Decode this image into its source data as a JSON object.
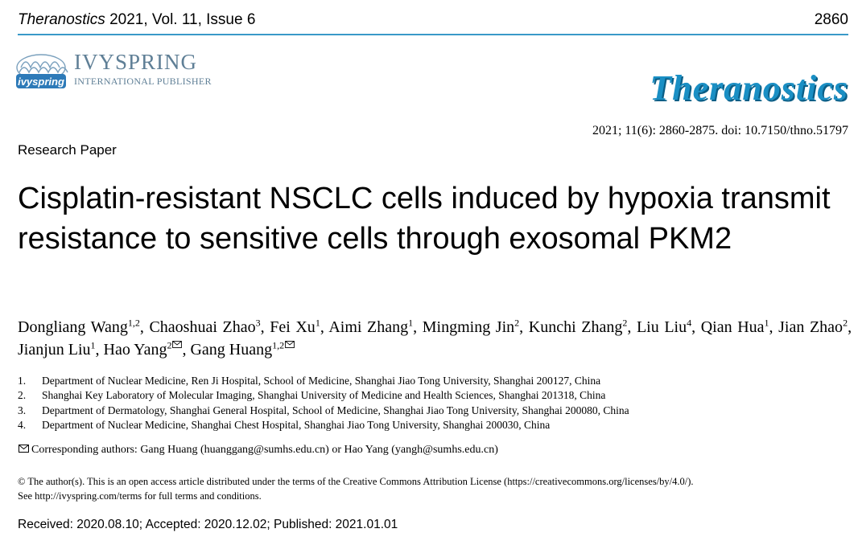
{
  "header": {
    "journal_name": "Theranostics",
    "volume_info": "2021, Vol. 11, Issue 6",
    "page_number": "2860"
  },
  "publisher": {
    "name": "IVYSPRING",
    "subtitle": "INTERNATIONAL PUBLISHER",
    "logo_text": "ivyspring"
  },
  "brand": {
    "name": "Theranostics",
    "color": "#1a8fc4"
  },
  "citation": "2021; 11(6): 2860-2875. doi: 10.7150/thno.51797",
  "article_type": "Research Paper",
  "title": "Cisplatin-resistant NSCLC cells induced by hypoxia transmit resistance to sensitive cells through exosomal PKM2",
  "authors": [
    {
      "name": "Dongliang Wang",
      "aff": "1,2",
      "corr": false
    },
    {
      "name": "Chaoshuai Zhao",
      "aff": "3",
      "corr": false
    },
    {
      "name": "Fei Xu",
      "aff": "1",
      "corr": false
    },
    {
      "name": "Aimi Zhang",
      "aff": "1",
      "corr": false
    },
    {
      "name": "Mingming Jin",
      "aff": "2",
      "corr": false
    },
    {
      "name": "Kunchi Zhang",
      "aff": "2",
      "corr": false
    },
    {
      "name": "Liu Liu",
      "aff": "4",
      "corr": false
    },
    {
      "name": "Qian Hua",
      "aff": "1",
      "corr": false
    },
    {
      "name": "Jian Zhao",
      "aff": "2",
      "corr": false
    },
    {
      "name": "Jianjun Liu",
      "aff": "1",
      "corr": false
    },
    {
      "name": "Hao Yang",
      "aff": "2",
      "corr": true
    },
    {
      "name": "Gang Huang",
      "aff": "1,2",
      "corr": true
    }
  ],
  "affiliations": [
    {
      "num": "1.",
      "text": "Department of Nuclear Medicine, Ren Ji Hospital, School of Medicine, Shanghai Jiao Tong University, Shanghai 200127, China"
    },
    {
      "num": "2.",
      "text": "Shanghai Key Laboratory of Molecular Imaging, Shanghai University of Medicine and Health Sciences, Shanghai 201318, China"
    },
    {
      "num": "3.",
      "text": "Department of Dermatology, Shanghai General Hospital, School of Medicine, Shanghai Jiao Tong University, Shanghai 200080, China"
    },
    {
      "num": "4.",
      "text": "Department of Nuclear Medicine, Shanghai Chest Hospital, Shanghai Jiao Tong University, Shanghai 200030, China"
    }
  ],
  "corresponding": "Corresponding authors: Gang Huang (huanggang@sumhs.edu.cn) or Hao Yang (yangh@sumhs.edu.cn)",
  "license": {
    "line1": "© The author(s). This is an open access article distributed under the terms of the Creative Commons Attribution License (https://creativecommons.org/licenses/by/4.0/).",
    "line2": "See http://ivyspring.com/terms for full terms and conditions."
  },
  "dates": "Received: 2020.08.10; Accepted: 2020.12.02; Published: 2021.01.01"
}
